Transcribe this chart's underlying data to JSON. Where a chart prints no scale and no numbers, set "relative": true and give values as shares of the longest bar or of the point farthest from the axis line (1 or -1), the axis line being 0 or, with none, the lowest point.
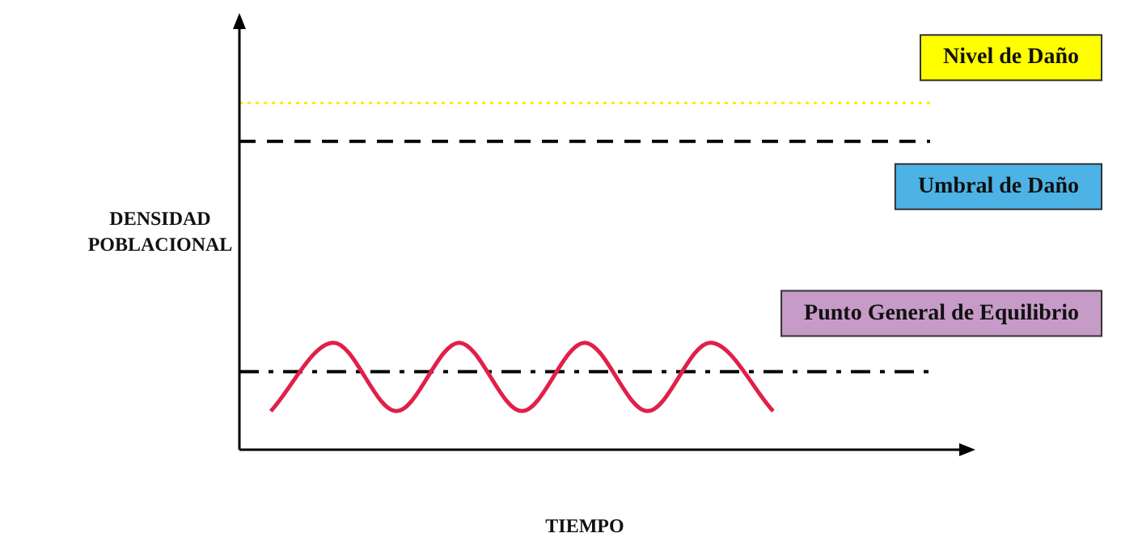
{
  "chart_data": {
    "type": "line",
    "relative": true,
    "xlabel": "TIEMPO",
    "ylabel": "DENSIDAD POBLACIONAL",
    "categories": [
      null,
      null,
      null,
      null,
      null,
      null,
      null,
      null,
      null,
      null,
      null
    ],
    "series": [
      {
        "color": "#e0204a",
        "values": [
          0.36,
          1,
          0.36,
          1,
          0.36,
          1,
          0.36,
          1,
          0.36,
          null,
          null
        ]
      }
    ],
    "ref_lines": [
      {
        "axis": "y",
        "value": 3.24,
        "label": "Nivel de Daño",
        "color": "#f2f000",
        "line_style": "dotted"
      },
      {
        "axis": "y",
        "value": 2.88,
        "label": "Umbral de Daño",
        "color": "#000000",
        "line_style": "dashed"
      },
      {
        "axis": "y",
        "value": 0.73,
        "label": "Punto General de Equilibrio",
        "color": "#000000",
        "line_style": "dashdot"
      }
    ],
    "grid": false,
    "legend": false,
    "marker": "none"
  }
}
